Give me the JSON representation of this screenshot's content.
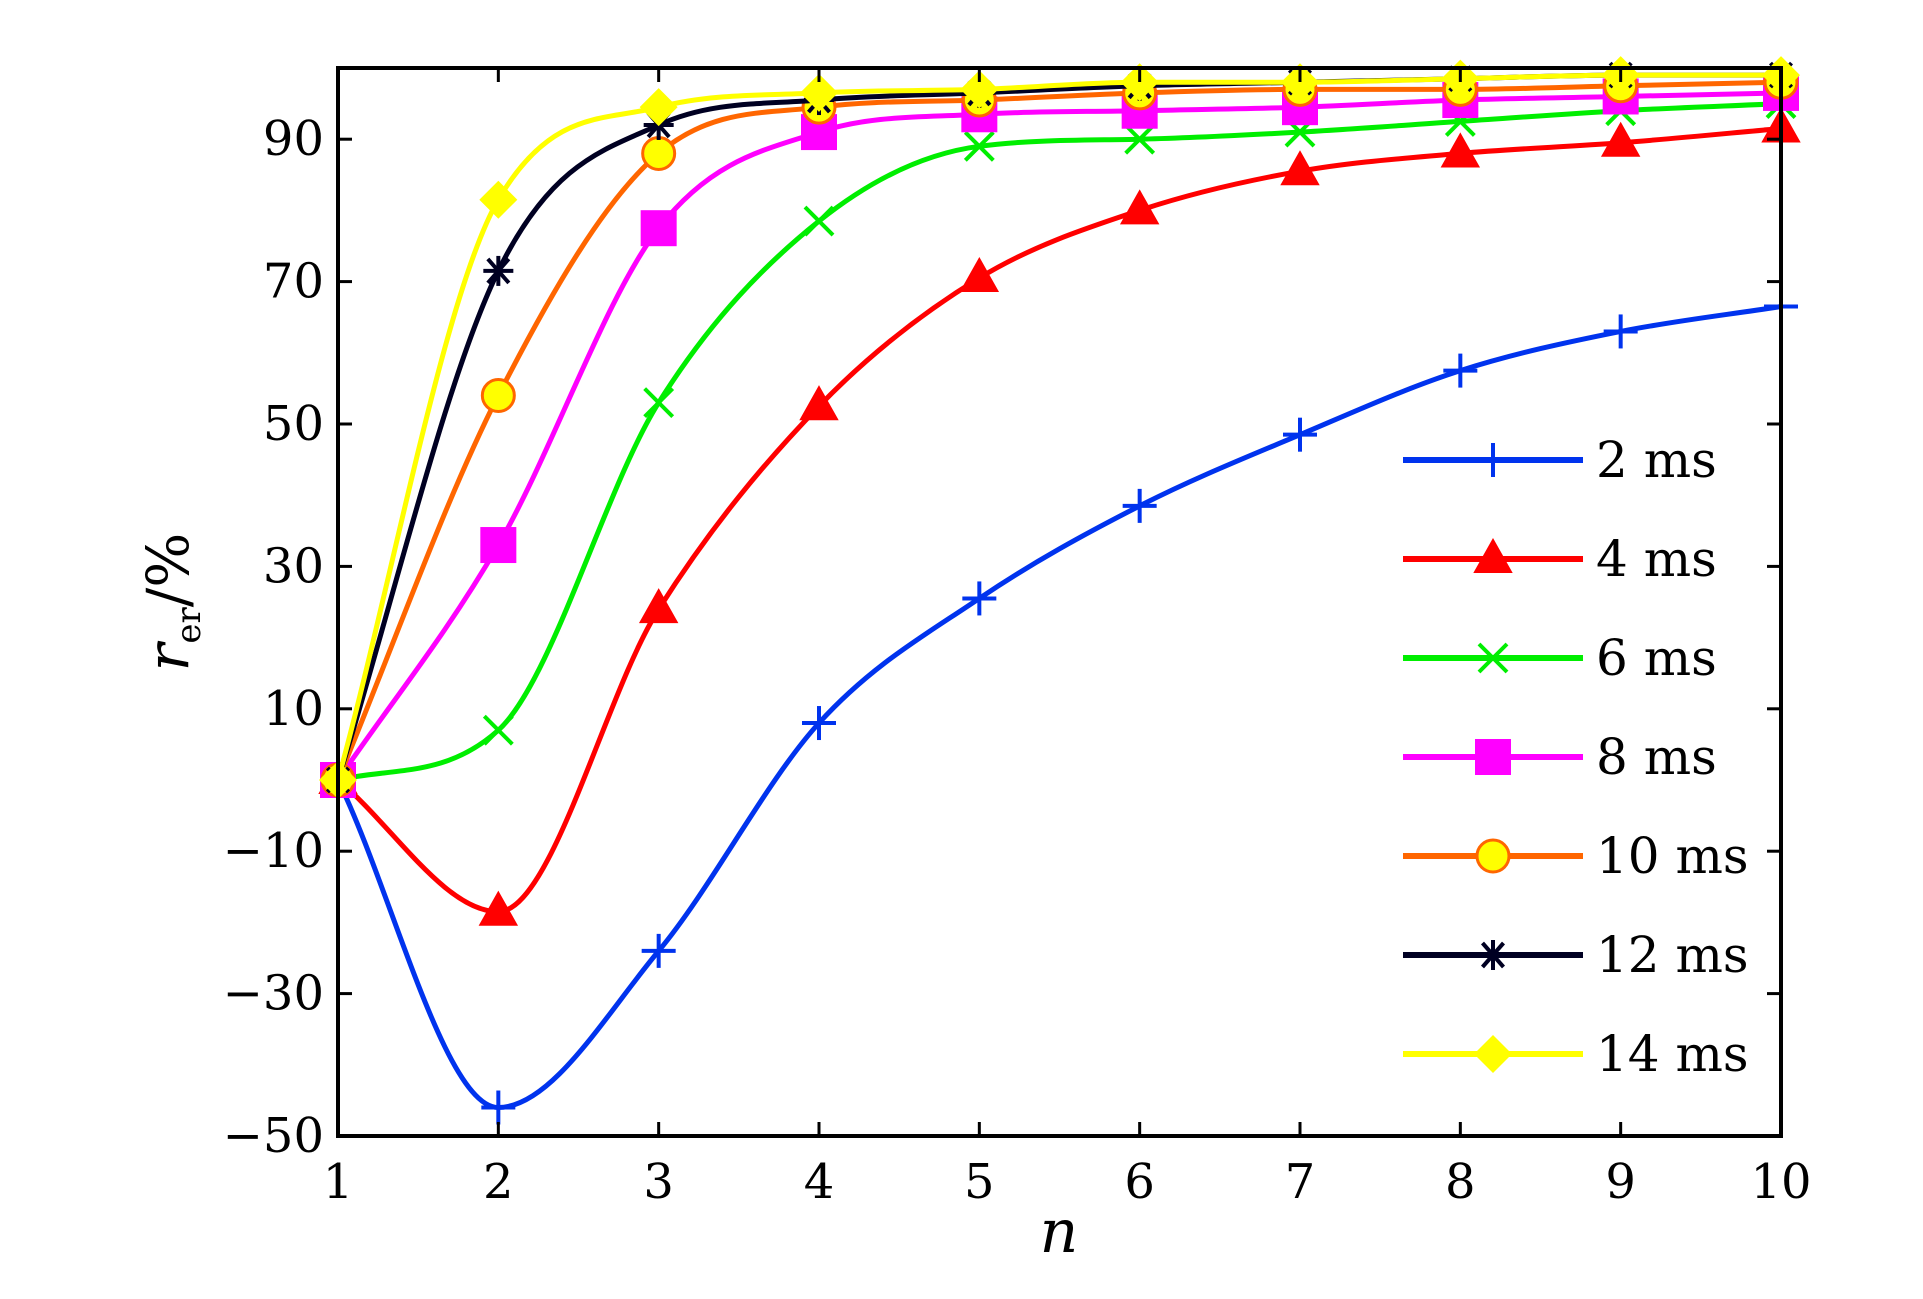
{
  "chart_data": {
    "type": "line",
    "xlabel": "n",
    "ylabel_main": "r",
    "ylabel_sub": "er",
    "ylabel_tail": "/%",
    "xlim": [
      1,
      10
    ],
    "ylim": [
      -50,
      100
    ],
    "x_ticks": [
      1,
      2,
      3,
      4,
      5,
      6,
      7,
      8,
      9,
      10
    ],
    "y_ticks": [
      -50,
      -30,
      -10,
      10,
      30,
      50,
      70,
      90
    ],
    "y_tick_labels": [
      "−50",
      "−30",
      "−10",
      "10",
      "30",
      "50",
      "70",
      "90"
    ],
    "grid": false,
    "legend_position": "right",
    "x": [
      1,
      2,
      3,
      4,
      5,
      6,
      7,
      8,
      9,
      10
    ],
    "series": [
      {
        "name": "2 ms",
        "color": "#0033ee",
        "marker": "plus",
        "values": [
          0,
          -46,
          -24,
          8,
          25.5,
          38.5,
          48.5,
          57.5,
          63,
          66.5
        ]
      },
      {
        "name": "4 ms",
        "color": "#ff0000",
        "marker": "triangle",
        "values": [
          0,
          -18.5,
          24,
          52.5,
          70.5,
          80,
          85.5,
          88,
          89.5,
          91.5
        ]
      },
      {
        "name": "6 ms",
        "color": "#00ee00",
        "marker": "x",
        "values": [
          0,
          7,
          53,
          78.5,
          89,
          90,
          91,
          92.5,
          94,
          95
        ]
      },
      {
        "name": "8 ms",
        "color": "#ff00ff",
        "marker": "square",
        "values": [
          0,
          33,
          77.5,
          91,
          93.5,
          94,
          94.5,
          95.5,
          96,
          96.5
        ]
      },
      {
        "name": "10 ms",
        "color": "#ff6600",
        "marker": "circle",
        "values": [
          0,
          54,
          88,
          94.5,
          95.5,
          96.5,
          97,
          97,
          97.5,
          98
        ]
      },
      {
        "name": "12 ms",
        "color": "#000022",
        "marker": "star",
        "values": [
          0,
          71.5,
          92,
          95.5,
          96.5,
          97.5,
          98,
          98.5,
          99,
          99
        ]
      },
      {
        "name": "14 ms",
        "color": "#ffff00",
        "marker": "diamond",
        "values": [
          0,
          81.5,
          94.5,
          96.5,
          97,
          98,
          98,
          98.5,
          99,
          99
        ]
      }
    ]
  }
}
